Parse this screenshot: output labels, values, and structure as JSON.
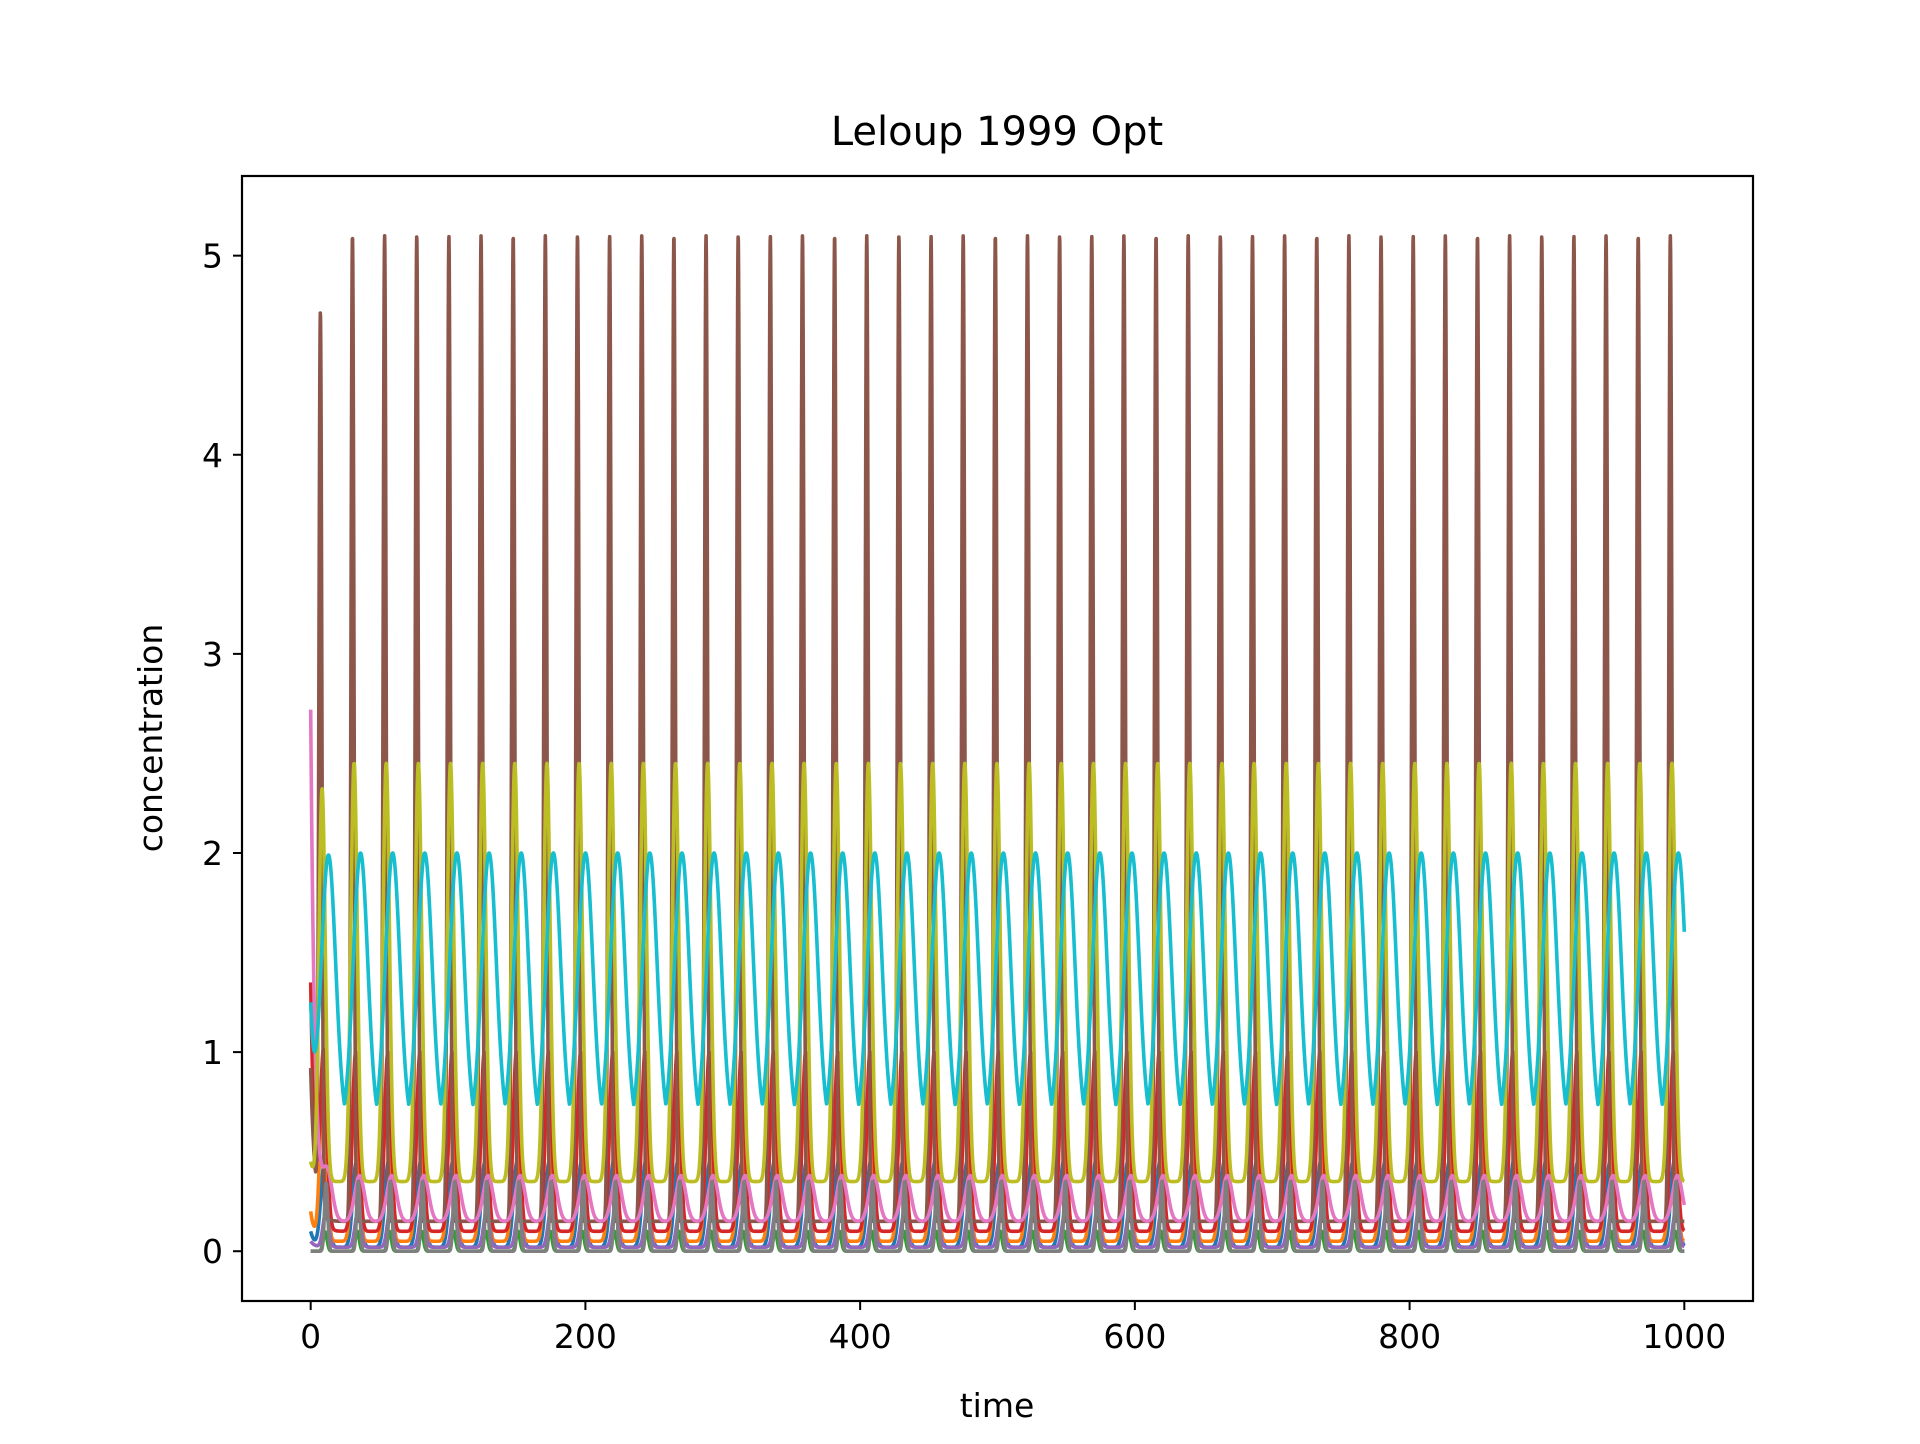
{
  "chart_data": {
    "type": "line",
    "title": "Leloup 1999 Opt",
    "xlabel": "time",
    "ylabel": "concentration",
    "xlim": [
      -50,
      1050
    ],
    "ylim": [
      -0.25,
      5.4
    ],
    "xticks": [
      0,
      200,
      400,
      600,
      800,
      1000
    ],
    "yticks": [
      0,
      1,
      2,
      3,
      4,
      5
    ],
    "xtick_labels": [
      "0",
      "200",
      "400",
      "600",
      "800",
      "1000"
    ],
    "ytick_labels": [
      "0",
      "1",
      "2",
      "3",
      "4",
      "5"
    ],
    "grid": false,
    "legend": "none",
    "time_range": [
      0,
      1000
    ],
    "period": 23.4,
    "series": [
      {
        "color": "#1f77b4",
        "min": 0.02,
        "max": 0.45,
        "initial": 0.1,
        "peak_phase": 0.42,
        "width": 0.22
      },
      {
        "color": "#ff7f0e",
        "min": 0.05,
        "max": 0.85,
        "initial": 0.2,
        "peak_phase": 0.38,
        "width": 0.2
      },
      {
        "color": "#2ca02c",
        "min": 0.0,
        "max": 0.1,
        "initial": 0.0,
        "peak_phase": 0.45,
        "width": 0.12
      },
      {
        "color": "#d62728",
        "min": 0.1,
        "max": 1.0,
        "initial": 1.35,
        "peak_phase": 0.4,
        "width": 0.2
      },
      {
        "color": "#9467bd",
        "min": 0.02,
        "max": 0.2,
        "initial": 0.05,
        "peak_phase": 0.47,
        "width": 0.18
      },
      {
        "color": "#8c564b",
        "min": 0.15,
        "max": 5.1,
        "initial": 0.92,
        "peak_phase": 0.3,
        "width": 0.09,
        "first_peak": 5.12
      },
      {
        "color": "#e377c2",
        "min": 0.15,
        "max": 0.38,
        "initial": 2.72,
        "peak_phase": 0.52,
        "width": 0.3
      },
      {
        "color": "#7f7f7f",
        "min": 0.0,
        "max": 0.35,
        "initial": 0.0,
        "peak_phase": 0.48,
        "width": 0.1
      },
      {
        "color": "#bcbd22",
        "min": 0.35,
        "max": 2.45,
        "initial": 0.45,
        "peak_phase": 0.35,
        "width": 0.2
      },
      {
        "color": "#17becf",
        "min": 0.62,
        "max": 2.0,
        "initial": 1.25,
        "peak_phase": 0.55,
        "width": 0.45
      }
    ]
  }
}
